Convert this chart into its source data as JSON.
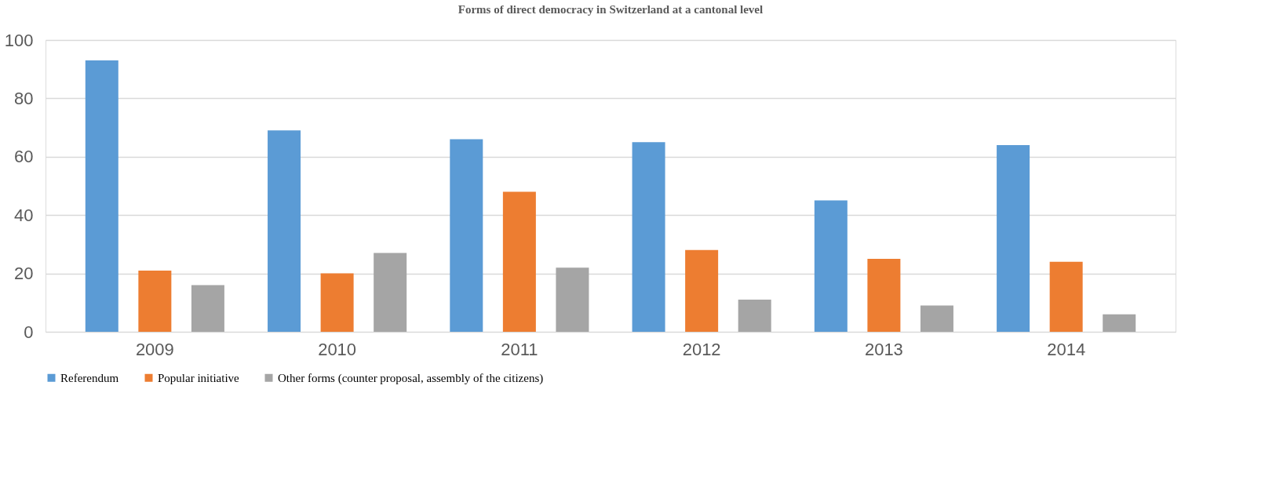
{
  "chart_data": {
    "type": "bar",
    "title": "Forms of direct democracy in Switzerland at a cantonal level",
    "categories": [
      "2009",
      "2010",
      "2011",
      "2012",
      "2013",
      "2014"
    ],
    "series": [
      {
        "name": "Referendum",
        "color": "#5b9bd5",
        "values": [
          93,
          69,
          66,
          65,
          45,
          64
        ]
      },
      {
        "name": "Popular initiative",
        "color": "#ed7d31",
        "values": [
          21,
          20,
          48,
          28,
          25,
          24
        ]
      },
      {
        "name": "Other forms (counter proposal, assembly of  the citizens)",
        "color": "#a5a5a5",
        "values": [
          16,
          27,
          22,
          11,
          9,
          6
        ]
      }
    ],
    "ylim": [
      0,
      100
    ],
    "yticks": [
      0,
      20,
      40,
      60,
      80,
      100
    ],
    "grid": "y",
    "legend": "bottom"
  }
}
